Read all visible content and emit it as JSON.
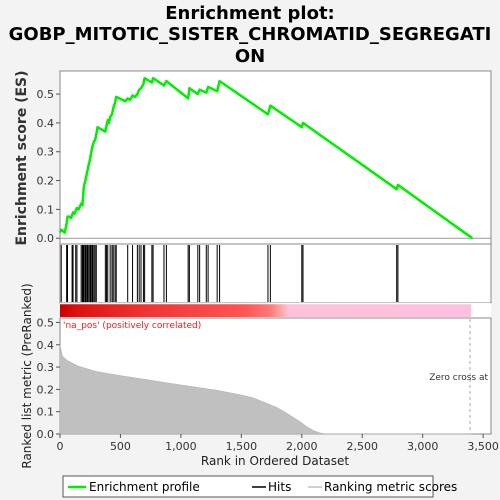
{
  "title_line1": "Enrichment plot:",
  "title_line2": "GOBP_MITOTIC_SISTER_CHROMATID_SEGREGATI",
  "title_line3": "ON",
  "chart_data": [
    {
      "type": "line",
      "ylabel": "Enrichment score (ES)",
      "ylim": [
        -0.02,
        0.58
      ],
      "xlim": [
        0,
        3565
      ],
      "yticks": [
        "0.0",
        "0.1",
        "0.2",
        "0.3",
        "0.4",
        "0.5"
      ],
      "series": [
        {
          "name": "Enrichment profile",
          "color": "#00ee00",
          "points": [
            [
              0,
              0.02
            ],
            [
              10,
              0.03
            ],
            [
              40,
              0.02
            ],
            [
              55,
              0.05
            ],
            [
              62,
              0.075
            ],
            [
              75,
              0.075
            ],
            [
              90,
              0.07
            ],
            [
              100,
              0.08
            ],
            [
              108,
              0.09
            ],
            [
              120,
              0.085
            ],
            [
              130,
              0.095
            ],
            [
              140,
              0.105
            ],
            [
              155,
              0.1
            ],
            [
              165,
              0.11
            ],
            [
              175,
              0.12
            ],
            [
              185,
              0.115
            ],
            [
              190,
              0.14
            ],
            [
              195,
              0.17
            ],
            [
              200,
              0.185
            ],
            [
              210,
              0.2
            ],
            [
              215,
              0.21
            ],
            [
              225,
              0.23
            ],
            [
              230,
              0.24
            ],
            [
              240,
              0.26
            ],
            [
              250,
              0.275
            ],
            [
              255,
              0.29
            ],
            [
              265,
              0.31
            ],
            [
              270,
              0.32
            ],
            [
              280,
              0.335
            ],
            [
              290,
              0.34
            ],
            [
              300,
              0.36
            ],
            [
              310,
              0.385
            ],
            [
              375,
              0.37
            ],
            [
              385,
              0.39
            ],
            [
              395,
              0.41
            ],
            [
              405,
              0.4
            ],
            [
              415,
              0.42
            ],
            [
              430,
              0.43
            ],
            [
              440,
              0.45
            ],
            [
              455,
              0.47
            ],
            [
              465,
              0.49
            ],
            [
              540,
              0.475
            ],
            [
              560,
              0.485
            ],
            [
              580,
              0.48
            ],
            [
              600,
              0.495
            ],
            [
              620,
              0.49
            ],
            [
              640,
              0.5
            ],
            [
              655,
              0.515
            ],
            [
              670,
              0.52
            ],
            [
              690,
              0.535
            ],
            [
              700,
              0.555
            ],
            [
              760,
              0.54
            ],
            [
              770,
              0.555
            ],
            [
              860,
              0.53
            ],
            [
              880,
              0.545
            ],
            [
              1060,
              0.485
            ],
            [
              1070,
              0.52
            ],
            [
              1140,
              0.5
            ],
            [
              1155,
              0.515
            ],
            [
              1210,
              0.505
            ],
            [
              1225,
              0.525
            ],
            [
              1300,
              0.51
            ],
            [
              1320,
              0.545
            ],
            [
              1720,
              0.43
            ],
            [
              1740,
              0.46
            ],
            [
              2000,
              0.385
            ],
            [
              2010,
              0.4
            ],
            [
              2785,
              0.17
            ],
            [
              2795,
              0.185
            ],
            [
              3410,
              0.0
            ]
          ]
        }
      ]
    },
    {
      "type": "scatter",
      "series": [
        {
          "name": "Hits",
          "ranks": [
            10,
            55,
            62,
            100,
            108,
            130,
            140,
            175,
            185,
            190,
            195,
            200,
            210,
            215,
            225,
            230,
            240,
            250,
            255,
            265,
            270,
            280,
            290,
            300,
            375,
            385,
            395,
            415,
            430,
            440,
            455,
            465,
            560,
            600,
            640,
            655,
            670,
            690,
            700,
            760,
            770,
            860,
            880,
            1060,
            1070,
            1140,
            1155,
            1210,
            1225,
            1300,
            1320,
            1720,
            1740,
            2000,
            2010,
            2785,
            2795
          ]
        }
      ]
    },
    {
      "type": "area",
      "ylabel": "Ranked list metric (PreRanked)",
      "xlabel": "Rank in Ordered Dataset",
      "ylim": [
        0,
        0.52
      ],
      "xlim": [
        0,
        3565
      ],
      "yticks": [
        "0.0",
        "0.1",
        "0.2",
        "0.3",
        "0.4",
        "0.5"
      ],
      "xticks": [
        "0",
        "500",
        "1,000",
        "1,500",
        "2,000",
        "2,500",
        "3,000",
        "3,500"
      ],
      "annotation_pos": "'na_pos' (positively correlated)",
      "annotation_zero": "Zero cross at",
      "series": [
        {
          "name": "Ranking metric scores",
          "color": "#c0c0c0",
          "points": [
            [
              0,
              0.4
            ],
            [
              20,
              0.35
            ],
            [
              60,
              0.33
            ],
            [
              150,
              0.305
            ],
            [
              300,
              0.28
            ],
            [
              500,
              0.262
            ],
            [
              700,
              0.245
            ],
            [
              900,
              0.228
            ],
            [
              1100,
              0.212
            ],
            [
              1300,
              0.196
            ],
            [
              1500,
              0.175
            ],
            [
              1600,
              0.162
            ],
            [
              1700,
              0.14
            ],
            [
              1800,
              0.118
            ],
            [
              1900,
              0.085
            ],
            [
              2000,
              0.05
            ],
            [
              2050,
              0.03
            ],
            [
              2100,
              0.015
            ],
            [
              2150,
              0.005
            ],
            [
              2200,
              0.0
            ],
            [
              3410,
              0.0
            ]
          ]
        }
      ]
    }
  ],
  "legend": {
    "items": [
      "Enrichment profile",
      "Hits",
      "Ranking metric scores"
    ],
    "colors": [
      "#00ee00",
      "#000000",
      "#c0c0c0"
    ]
  }
}
